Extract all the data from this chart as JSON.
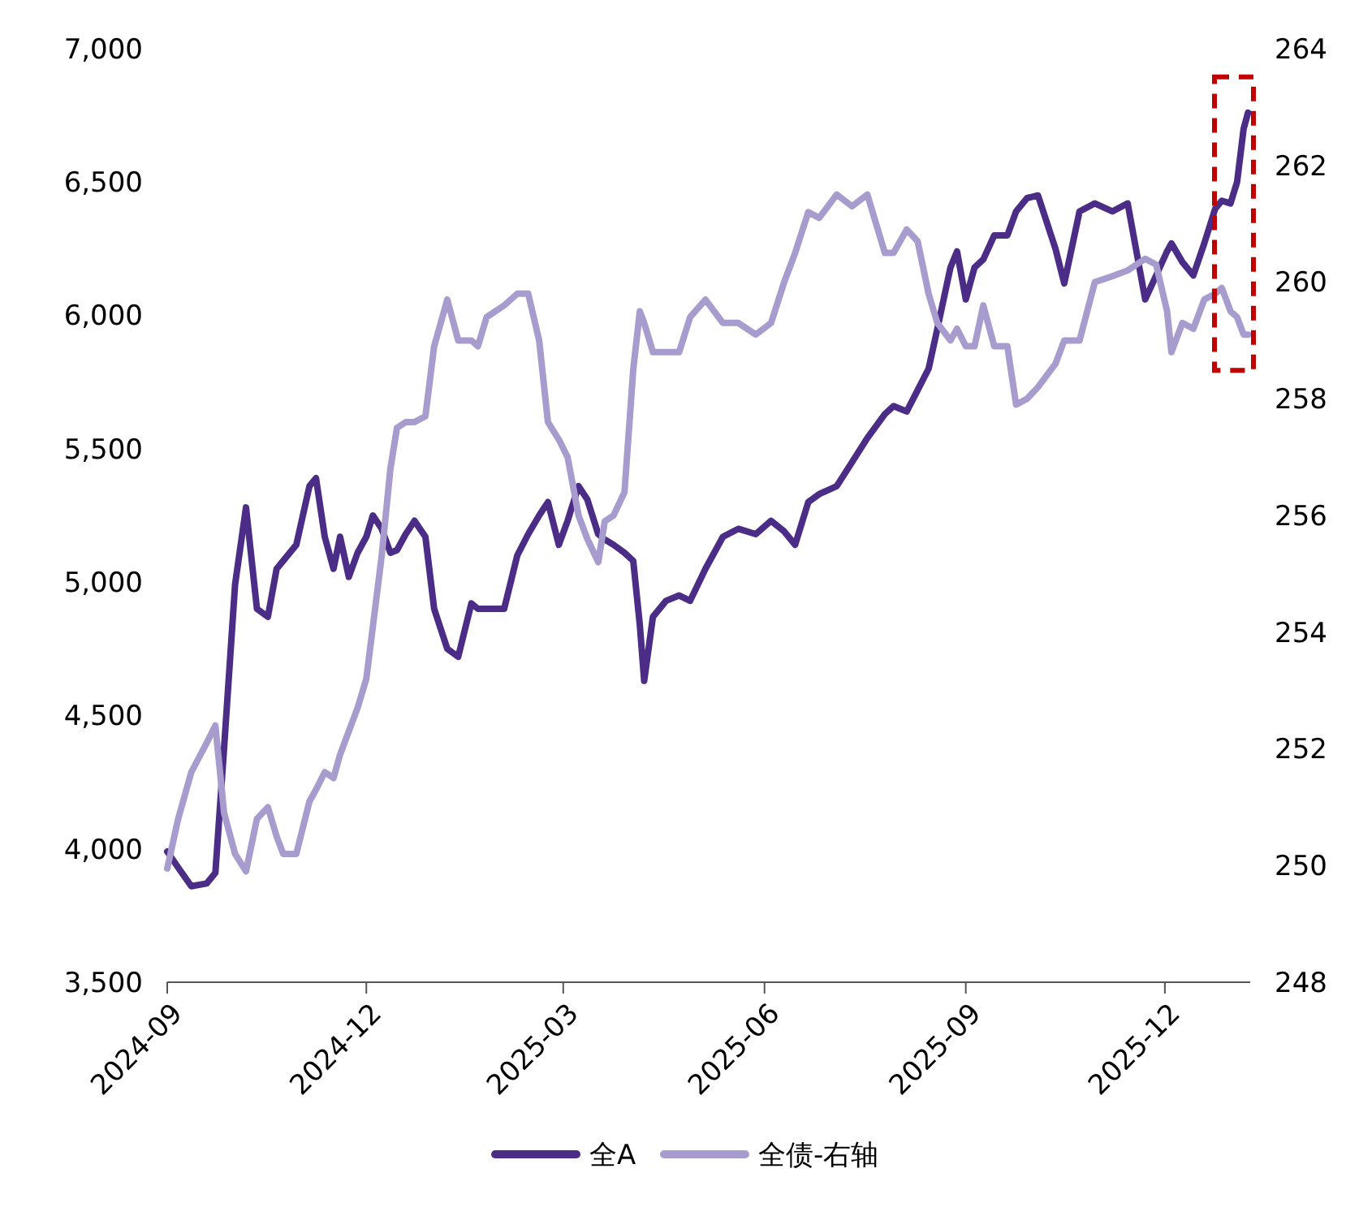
{
  "chart_data": {
    "type": "line",
    "x": [
      "2024-09-01",
      "2024-09-06",
      "2024-09-12",
      "2024-09-19",
      "2024-09-23",
      "2024-09-27",
      "2024-10-02",
      "2024-10-07",
      "2024-10-12",
      "2024-10-17",
      "2024-10-21",
      "2024-10-24",
      "2024-10-30",
      "2024-11-05",
      "2024-11-08",
      "2024-11-12",
      "2024-11-16",
      "2024-11-19",
      "2024-11-23",
      "2024-11-27",
      "2024-12-01",
      "2024-12-04",
      "2024-12-08",
      "2024-12-12",
      "2024-12-15",
      "2024-12-19",
      "2024-12-23",
      "2024-12-28",
      "2025-01-01",
      "2025-01-07",
      "2025-01-12",
      "2025-01-18",
      "2025-01-21",
      "2025-01-25",
      "2025-02-02",
      "2025-02-08",
      "2025-02-13",
      "2025-02-18",
      "2025-02-22",
      "2025-02-27",
      "2025-03-03",
      "2025-03-08",
      "2025-03-12",
      "2025-03-17",
      "2025-03-20",
      "2025-03-24",
      "2025-03-29",
      "2025-04-02",
      "2025-04-05",
      "2025-04-07",
      "2025-04-11",
      "2025-04-17",
      "2025-04-23",
      "2025-04-28",
      "2025-05-05",
      "2025-05-13",
      "2025-05-20",
      "2025-05-28",
      "2025-06-04",
      "2025-06-10",
      "2025-06-15",
      "2025-06-21",
      "2025-06-26",
      "2025-07-04",
      "2025-07-11",
      "2025-07-18",
      "2025-07-26",
      "2025-07-30",
      "2025-08-05",
      "2025-08-10",
      "2025-08-15",
      "2025-08-19",
      "2025-08-25",
      "2025-08-28",
      "2025-09-01",
      "2025-09-05",
      "2025-09-09",
      "2025-09-14",
      "2025-09-20",
      "2025-09-24",
      "2025-09-29",
      "2025-10-04",
      "2025-10-12",
      "2025-10-16",
      "2025-10-23",
      "2025-10-30",
      "2025-11-07",
      "2025-11-14",
      "2025-11-22",
      "2025-11-27",
      "2025-12-02",
      "2025-12-04",
      "2025-12-09",
      "2025-12-14",
      "2025-12-19",
      "2025-12-24",
      "2025-12-27",
      "2025-12-31",
      "2026-01-03",
      "2026-01-06",
      "2026-01-08"
    ],
    "series": [
      {
        "name": "全A",
        "color": "#4b2c86",
        "values": [
          3990,
          3930,
          3860,
          3870,
          3910,
          4380,
          4990,
          5280,
          4900,
          4870,
          5050,
          5080,
          5140,
          5360,
          5390,
          5170,
          5050,
          5170,
          5020,
          5110,
          5170,
          5250,
          5200,
          5110,
          5120,
          5180,
          5230,
          5170,
          4900,
          4750,
          4720,
          4920,
          4900,
          4900,
          4900,
          5100,
          5180,
          5250,
          5300,
          5140,
          5230,
          5360,
          5310,
          5180,
          5160,
          5140,
          5110,
          5080,
          4840,
          4630,
          4870,
          4930,
          4950,
          4930,
          5050,
          5170,
          5200,
          5180,
          5230,
          5190,
          5140,
          5300,
          5330,
          5360,
          5450,
          5540,
          5630,
          5660,
          5640,
          5720,
          5800,
          5950,
          6180,
          6240,
          6060,
          6180,
          6210,
          6300,
          6300,
          6390,
          6440,
          6450,
          6250,
          6120,
          6390,
          6420,
          6390,
          6420,
          6060,
          6150,
          6240,
          6270,
          6200,
          6150,
          6270,
          6400,
          6430,
          6420,
          6500,
          6700,
          6760
        ]
      },
      {
        "name": "全债-右轴",
        "color": "#a89ccf",
        "axis": "y2",
        "values": [
          249.95,
          250.8,
          251.6,
          252.1,
          252.4,
          250.9,
          250.2,
          249.9,
          250.8,
          251.0,
          250.5,
          250.2,
          250.2,
          251.1,
          251.3,
          251.6,
          251.5,
          251.9,
          252.3,
          252.7,
          253.2,
          254.1,
          255.3,
          256.8,
          257.5,
          257.6,
          257.6,
          257.7,
          258.9,
          259.7,
          259.0,
          259.0,
          258.9,
          259.4,
          259.6,
          259.8,
          259.8,
          259.0,
          257.6,
          257.3,
          257.0,
          256.0,
          255.6,
          255.2,
          255.9,
          256.0,
          256.4,
          258.5,
          259.5,
          259.3,
          258.8,
          258.8,
          258.8,
          259.4,
          259.7,
          259.3,
          259.3,
          259.1,
          259.3,
          260.0,
          260.5,
          261.2,
          261.1,
          261.5,
          261.3,
          261.5,
          260.5,
          260.5,
          260.9,
          260.7,
          259.8,
          259.3,
          259.0,
          259.2,
          258.9,
          258.9,
          259.6,
          258.9,
          258.9,
          257.9,
          258.0,
          258.2,
          258.6,
          259.0,
          259.0,
          260.0,
          260.1,
          260.2,
          260.4,
          260.3,
          259.5,
          258.8,
          259.3,
          259.2,
          259.7,
          259.8,
          259.9,
          259.5,
          259.4,
          259.1,
          259.1
        ]
      }
    ],
    "xlim": [
      "2024-09-01",
      "2026-01-09"
    ],
    "xticks": [
      {
        "value": "2024-09-01",
        "label": "2024-09"
      },
      {
        "value": "2024-12-01",
        "label": "2024-12"
      },
      {
        "value": "2025-03-01",
        "label": "2025-03"
      },
      {
        "value": "2025-06-01",
        "label": "2025-06"
      },
      {
        "value": "2025-09-01",
        "label": "2025-09"
      },
      {
        "value": "2025-12-01",
        "label": "2025-12"
      }
    ],
    "ylim": [
      3500,
      7000
    ],
    "yticks": [
      {
        "value": 3500,
        "label": "3,500"
      },
      {
        "value": 4000,
        "label": "4,000"
      },
      {
        "value": 4500,
        "label": "4,500"
      },
      {
        "value": 5000,
        "label": "5,000"
      },
      {
        "value": 5500,
        "label": "5,500"
      },
      {
        "value": 6000,
        "label": "6,000"
      },
      {
        "value": 6500,
        "label": "6,500"
      },
      {
        "value": 7000,
        "label": "7,000"
      }
    ],
    "y2lim": [
      248,
      264
    ],
    "y2ticks": [
      248,
      250,
      252,
      254,
      256,
      258,
      260,
      262,
      264
    ],
    "legend": "bottom",
    "grid": false,
    "line_style": "solid"
  }
}
